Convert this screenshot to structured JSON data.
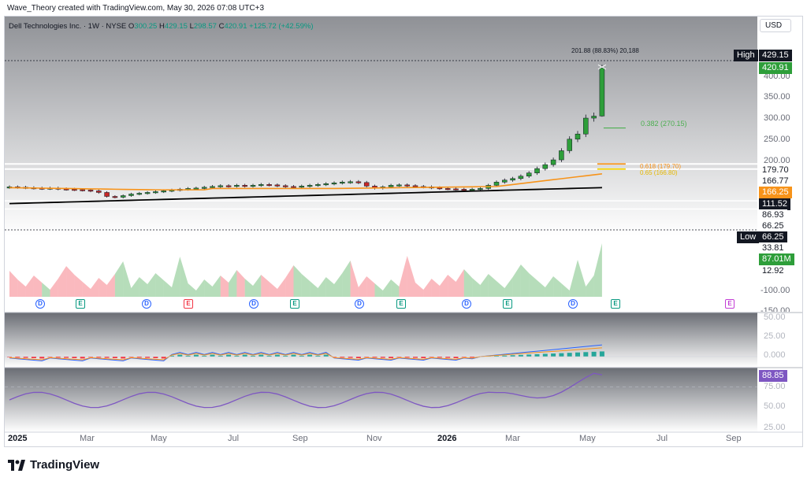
{
  "header": {
    "author_line": "Wave_Theory created with TradingView.com, May 30, 2026 07:08 UTC+3"
  },
  "legend": {
    "symbol": "Dell Technologies Inc. · 1W · NYSE",
    "open_label": "O",
    "open": "300.25",
    "high_label": "H",
    "high": "429.15",
    "low_label": "L",
    "low": "298.57",
    "close_label": "C",
    "close": "420.91",
    "change": "+125.72 (+42.59%)"
  },
  "currency": "USD",
  "price_axis": {
    "ticks": [
      "400.00",
      "350.00",
      "300.00",
      "250.00",
      "200.00"
    ],
    "tick_values": [
      400,
      350,
      300,
      250,
      200
    ],
    "labels": {
      "high_tag": "High",
      "high_value": "429.15",
      "last": "420.91",
      "level_179": "179.70",
      "level_166": "166.77",
      "ema": "166.25",
      "sma": "111.52",
      "level_86": "86.93",
      "level_66": "66.25",
      "low_tag": "Low",
      "low_value": "66.25",
      "level_33": "33.81",
      "volume": "87.01M",
      "level_12": "12.92",
      "vol_scale": "-100.00",
      "vol_scale2": "-150.00"
    }
  },
  "annotations": {
    "measure": "201.88 (88.83%) 20,188",
    "fib_382": "0.382 (270.15)",
    "fib_618": "0.618 (179.70)",
    "fib_65": "0.65 (166.80)"
  },
  "macd": {
    "ticks": [
      "50.00",
      "25.00",
      "0.000"
    ],
    "tick_values": [
      50,
      25,
      0
    ]
  },
  "rsi": {
    "value": "88.85",
    "ticks": [
      "75.00",
      "50.00",
      "25.00"
    ],
    "tick_values": [
      75,
      50,
      25
    ]
  },
  "time_axis": [
    "2025",
    "Mar",
    "May",
    "Jul",
    "Sep",
    "Nov",
    "2026",
    "Mar",
    "May",
    "Jul",
    "Sep"
  ],
  "events": [
    {
      "type": "D",
      "style": "d"
    },
    {
      "type": "E",
      "style": "e"
    },
    {
      "type": "D",
      "style": "d"
    },
    {
      "type": "E",
      "style": "er"
    },
    {
      "type": "D",
      "style": "d"
    },
    {
      "type": "E",
      "style": "e"
    },
    {
      "type": "D",
      "style": "d"
    },
    {
      "type": "E",
      "style": "e"
    },
    {
      "type": "D",
      "style": "d"
    },
    {
      "type": "E",
      "style": "e"
    },
    {
      "type": "D",
      "style": "d"
    },
    {
      "type": "E",
      "style": "e"
    },
    {
      "type": "E",
      "style": "ep"
    }
  ],
  "brand": {
    "name": "TradingView"
  },
  "colors": {
    "up": "#089981",
    "down": "#f23645",
    "ema": "#f7931a",
    "sma": "#000000",
    "macd": "#2962ff",
    "signal": "#f7931a",
    "rsi": "#7e57c2",
    "up_candle": "#2e9e3a",
    "down_candle": "#c62828"
  },
  "chart_data": {
    "type": "candlestick",
    "symbol": "Dell Technologies Inc.",
    "interval": "1W",
    "candles_close": [
      122,
      121,
      120,
      119,
      118,
      119,
      117,
      116,
      115,
      114,
      112,
      108,
      98,
      96,
      100,
      104,
      106,
      108,
      110,
      112,
      114,
      116,
      118,
      119,
      121,
      123,
      125,
      124,
      126,
      124,
      126,
      128,
      127,
      125,
      123,
      122,
      124,
      126,
      128,
      130,
      132,
      134,
      135,
      133,
      124,
      119,
      122,
      126,
      127,
      125,
      123,
      122,
      120,
      118,
      117,
      116,
      115,
      116,
      118,
      126,
      134,
      139,
      143,
      149,
      157,
      168,
      178,
      190,
      213,
      242,
      255,
      295,
      300,
      420.91
    ],
    "last": {
      "open": 300.25,
      "high": 429.15,
      "low": 298.57,
      "close": 420.91
    },
    "ylim": [
      66,
      440
    ],
    "rsi_value": 88.85,
    "volume_last": "87.01M"
  }
}
